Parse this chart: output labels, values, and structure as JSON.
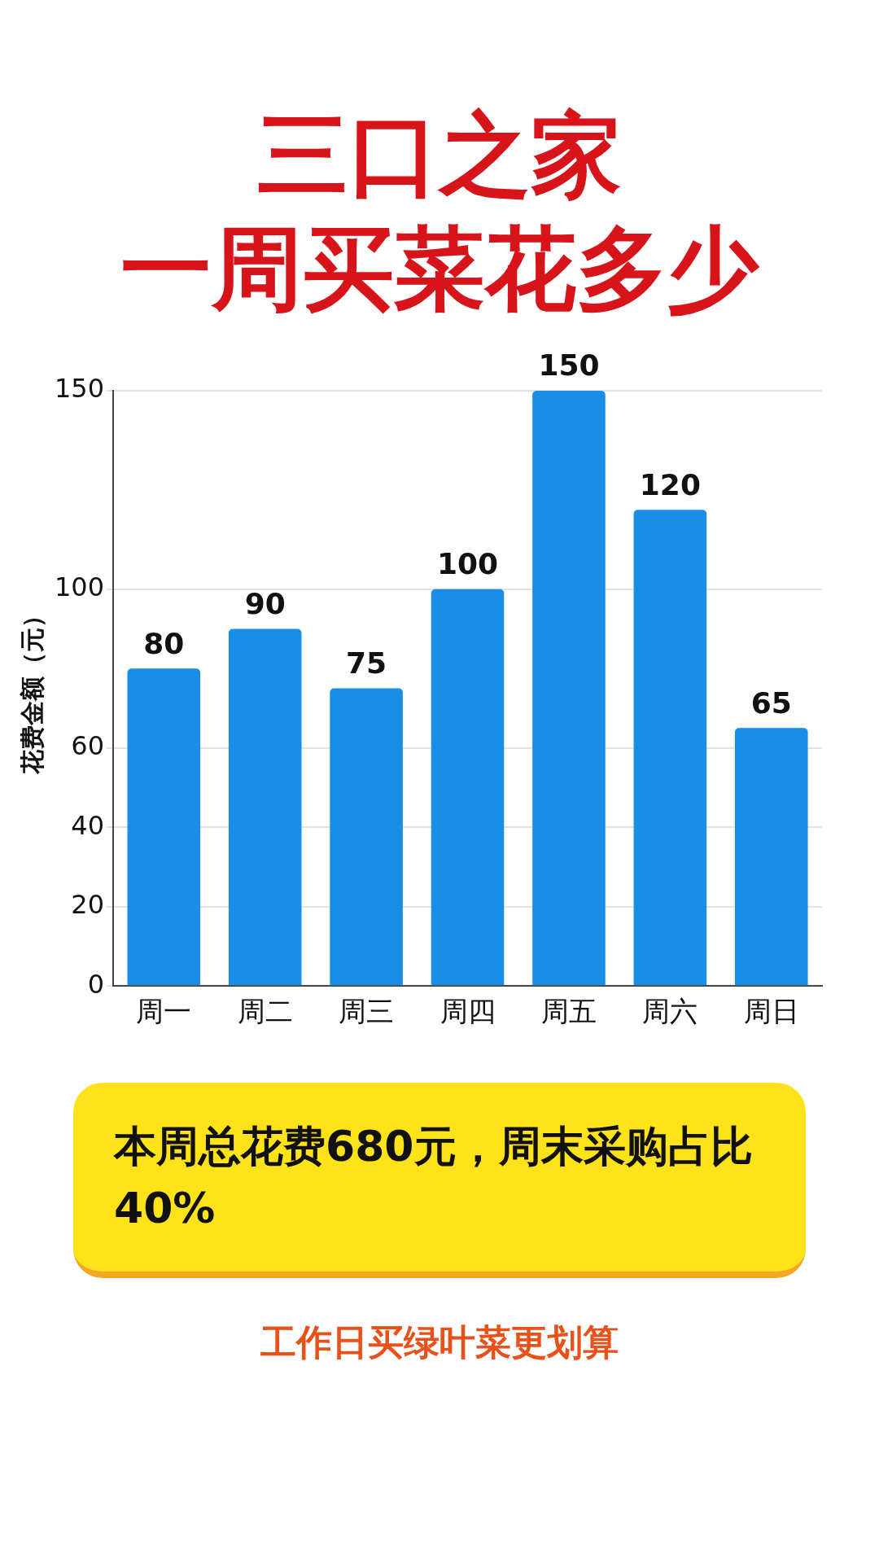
{
  "chart_data": {
    "type": "bar",
    "title": "三口之家",
    "subtitle": "一周买菜花多少",
    "ylabel": "花费金额（元）",
    "categories": [
      "周一",
      "周二",
      "周三",
      "周四",
      "周五",
      "周六",
      "周日"
    ],
    "values": [
      80,
      90,
      75,
      100,
      150,
      120,
      65
    ],
    "color": "#1a8ee6",
    "ylim": [
      0,
      150
    ],
    "yticks": [
      0,
      20,
      40,
      60,
      100,
      150
    ],
    "grid": "y",
    "legend": false,
    "data_labels": true,
    "annotations": [
      "本周总花费680元，周末采购占比40%",
      "工作日买绿叶菜更划算"
    ]
  }
}
